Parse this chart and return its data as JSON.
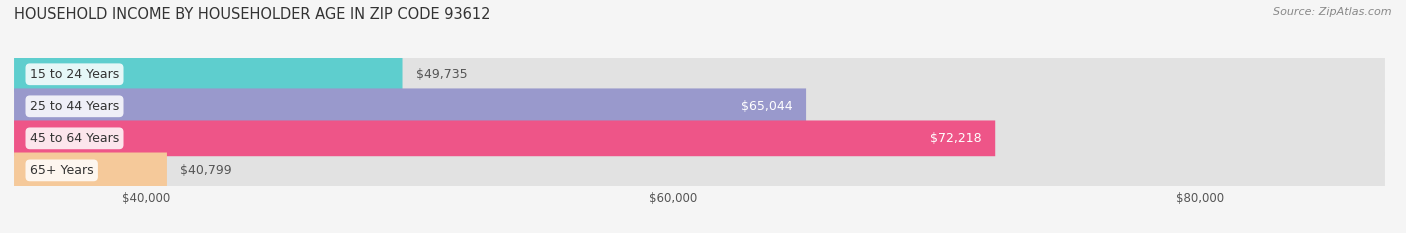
{
  "title": "HOUSEHOLD INCOME BY HOUSEHOLDER AGE IN ZIP CODE 93612",
  "source": "Source: ZipAtlas.com",
  "categories": [
    "15 to 24 Years",
    "25 to 44 Years",
    "45 to 64 Years",
    "65+ Years"
  ],
  "values": [
    49735,
    65044,
    72218,
    40799
  ],
  "bar_colors": [
    "#5ECECE",
    "#9999CC",
    "#EE5588",
    "#F5C99A"
  ],
  "bar_labels": [
    "$49,735",
    "$65,044",
    "$72,218",
    "$40,799"
  ],
  "xlim": [
    35000,
    87000
  ],
  "xticks": [
    40000,
    60000,
    80000
  ],
  "xticklabels": [
    "$40,000",
    "$60,000",
    "$80,000"
  ],
  "background_color": "#f5f5f5",
  "bar_bg_color": "#e2e2e2",
  "title_fontsize": 10.5,
  "source_fontsize": 8,
  "bar_height": 0.62,
  "label_color_inside": [
    "#333333",
    "#ffffff",
    "#ffffff",
    "#333333"
  ]
}
